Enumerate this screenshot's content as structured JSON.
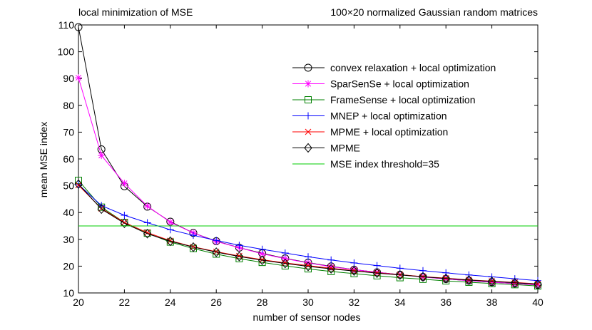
{
  "chart_data": {
    "type": "line",
    "title": "local minimization of MSE",
    "subtitle": "100×20 normalized Gaussian random matrices",
    "xlabel": "number of sensor nodes",
    "ylabel": "mean MSE index",
    "xlim": [
      20,
      40
    ],
    "ylim": [
      10,
      110
    ],
    "xticks": [
      20,
      22,
      24,
      26,
      28,
      30,
      32,
      34,
      36,
      38,
      40
    ],
    "yticks": [
      10,
      20,
      30,
      40,
      50,
      60,
      70,
      80,
      90,
      100,
      110
    ],
    "grid": false,
    "legend_position": "top-right",
    "x": [
      20,
      21,
      22,
      23,
      24,
      25,
      26,
      27,
      28,
      29,
      30,
      31,
      32,
      33,
      34,
      35,
      36,
      37,
      38,
      39,
      40
    ],
    "series": [
      {
        "name": "convex relaxation + local optimization",
        "color": "#000000",
        "marker": "circle",
        "values": [
          109.2,
          63.6,
          49.8,
          42.2,
          36.6,
          32.4,
          29.3,
          26.9,
          24.8,
          22.9,
          21.3,
          19.9,
          18.7,
          17.7,
          16.8,
          16.0,
          15.2,
          14.6,
          14.0,
          13.5,
          13.0
        ]
      },
      {
        "name": "SparSenSe + local optimization",
        "color": "#ff00ff",
        "marker": "star",
        "values": [
          90.3,
          61.3,
          50.9,
          42.4,
          36.4,
          32.4,
          29.2,
          26.9,
          24.6,
          22.8,
          21.2,
          19.8,
          18.7,
          17.7,
          16.8,
          15.9,
          15.2,
          14.6,
          14.0,
          13.5,
          13.0
        ]
      },
      {
        "name": "FrameSense + local optimization",
        "color": "#008000",
        "marker": "square",
        "values": [
          52.0,
          42.0,
          36.3,
          32.3,
          29.0,
          26.6,
          24.5,
          22.8,
          21.4,
          20.1,
          19.0,
          18.0,
          17.2,
          16.4,
          15.7,
          15.1,
          14.5,
          14.0,
          13.5,
          13.1,
          12.6
        ]
      },
      {
        "name": "MNEP + local optimization",
        "color": "#0000ff",
        "marker": "plus",
        "values": [
          50.5,
          42.6,
          39.0,
          36.2,
          33.6,
          31.5,
          29.6,
          27.8,
          26.3,
          24.9,
          23.5,
          22.3,
          21.2,
          20.2,
          19.2,
          18.3,
          17.5,
          16.7,
          16.0,
          15.3,
          14.6
        ]
      },
      {
        "name": "MPME + local optimization",
        "color": "#ff0000",
        "marker": "x",
        "values": [
          50.2,
          41.5,
          36.3,
          32.5,
          29.5,
          27.2,
          25.4,
          23.8,
          22.4,
          21.2,
          20.2,
          19.2,
          18.3,
          17.5,
          16.8,
          16.1,
          15.5,
          14.9,
          14.4,
          13.9,
          13.4
        ]
      },
      {
        "name": "MPME",
        "color": "#000000",
        "marker": "diamond",
        "values": [
          50.6,
          41.3,
          36.0,
          32.1,
          29.3,
          27.1,
          25.2,
          23.6,
          22.2,
          21.0,
          19.9,
          19.0,
          18.2,
          17.4,
          16.7,
          16.0,
          15.4,
          14.8,
          14.3,
          13.8,
          13.3
        ]
      },
      {
        "name": "MSE index threshold=35",
        "color": "#00cc00",
        "marker": "none",
        "values": [
          35,
          35,
          35,
          35,
          35,
          35,
          35,
          35,
          35,
          35,
          35,
          35,
          35,
          35,
          35,
          35,
          35,
          35,
          35,
          35,
          35
        ]
      }
    ]
  }
}
